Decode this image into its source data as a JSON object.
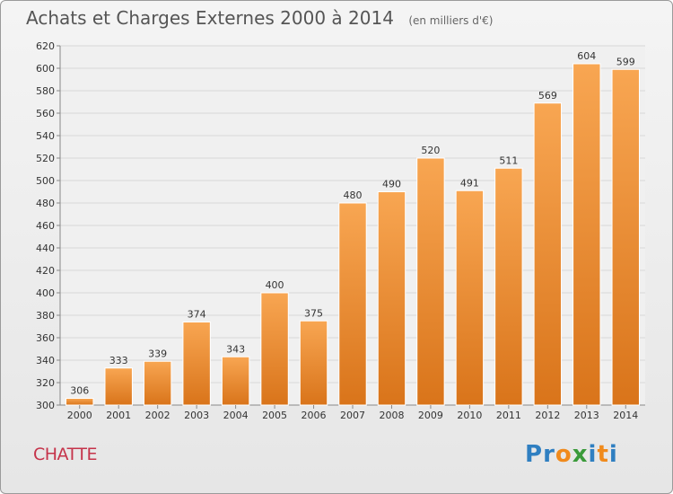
{
  "title": "Achats et Charges Externes 2000 à 2014",
  "subtitle": "(en milliers d'€)",
  "commune": "CHATTE",
  "logo": {
    "text": "Proxiti",
    "letters": [
      {
        "ch": "P",
        "color": "#2f7fc1"
      },
      {
        "ch": "r",
        "color": "#2f7fc1"
      },
      {
        "ch": "o",
        "color": "#f08a1c"
      },
      {
        "ch": "x",
        "color": "#3a9a3a"
      },
      {
        "ch": "i",
        "color": "#2f7fc1"
      },
      {
        "ch": "t",
        "color": "#f08a1c"
      },
      {
        "ch": "i",
        "color": "#2f7fc1"
      }
    ]
  },
  "colors": {
    "bar_light": "#f8a652",
    "bar_dark": "#d9741a",
    "grid": "#d8d8d8",
    "axis": "#888888",
    "text": "#333333"
  },
  "chart_data": {
    "type": "bar",
    "categories": [
      "2000",
      "2001",
      "2002",
      "2003",
      "2004",
      "2005",
      "2006",
      "2007",
      "2008",
      "2009",
      "2010",
      "2011",
      "2012",
      "2013",
      "2014"
    ],
    "values": [
      306,
      333,
      339,
      374,
      343,
      400,
      375,
      480,
      490,
      520,
      491,
      511,
      569,
      604,
      599
    ],
    "data_labels": [
      "306",
      "333",
      "339",
      "374",
      "343",
      "400",
      "375",
      "480",
      "490",
      "520",
      "491",
      "511",
      "569",
      "604",
      "599"
    ],
    "ylim": [
      300,
      620
    ],
    "yticks": [
      "300",
      "320",
      "340",
      "360",
      "380",
      "400",
      "420",
      "440",
      "460",
      "480",
      "500",
      "520",
      "540",
      "560",
      "580",
      "600",
      "620"
    ],
    "grid": true,
    "title": "Achats et Charges Externes 2000 à 2014",
    "xlabel": "",
    "ylabel": ""
  }
}
